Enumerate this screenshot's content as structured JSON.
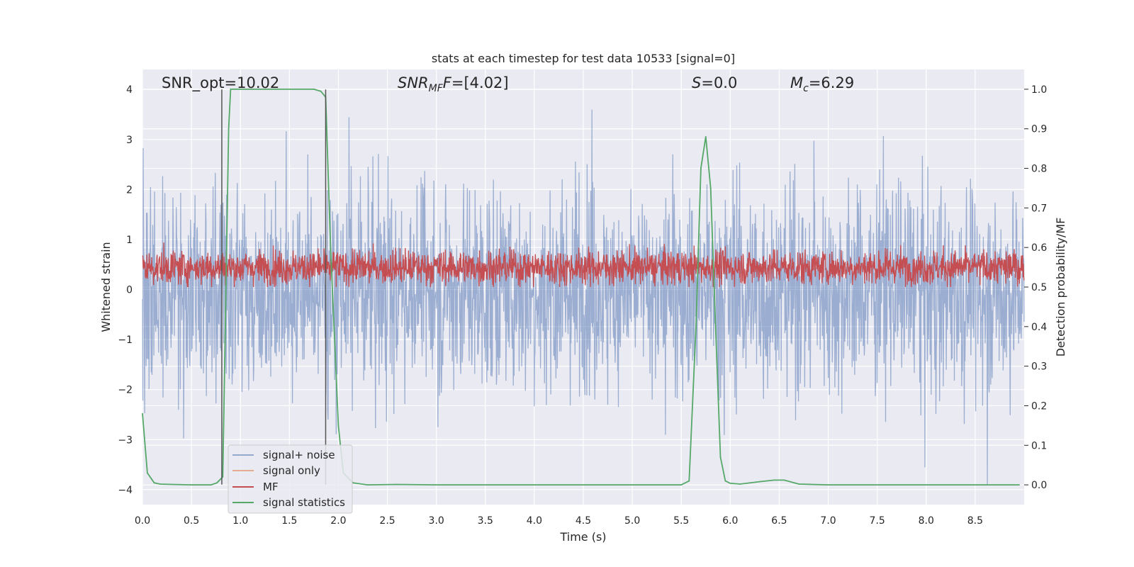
{
  "chart_data": {
    "type": "line",
    "title": "stats at each timestep for test data 10533 [signal=0]",
    "xlabel": "Time (s)",
    "ylabel": "Whitened strain",
    "ylabel_right": "Detection probability/MF",
    "xlim": [
      0,
      9
    ],
    "ylim": [
      -4.3,
      4.4
    ],
    "ylim_right": [
      -0.05,
      1.05
    ],
    "x_ticks": [
      "0.0",
      "0.5",
      "1.0",
      "1.5",
      "2.0",
      "2.5",
      "3.0",
      "3.5",
      "4.0",
      "4.5",
      "5.0",
      "5.5",
      "6.0",
      "6.5",
      "7.0",
      "7.5",
      "8.0",
      "8.5"
    ],
    "x_tick_values": [
      0,
      0.5,
      1,
      1.5,
      2,
      2.5,
      3,
      3.5,
      4,
      4.5,
      5,
      5.5,
      6,
      6.5,
      7,
      7.5,
      8,
      8.5
    ],
    "y_ticks": [
      "−4",
      "−3",
      "−2",
      "−1",
      "0",
      "1",
      "2",
      "3",
      "4"
    ],
    "y_tick_values": [
      -4,
      -3,
      -2,
      -1,
      0,
      1,
      2,
      3,
      4
    ],
    "y_ticks_right": [
      "0.0",
      "0.1",
      "0.2",
      "0.3",
      "0.4",
      "0.5",
      "0.6",
      "0.7",
      "0.8",
      "0.9",
      "1.0"
    ],
    "y_tick_values_right": [
      0,
      0.1,
      0.2,
      0.3,
      0.4,
      0.5,
      0.6,
      0.7,
      0.8,
      0.9,
      1.0
    ],
    "grid": true,
    "legend_position": "lower-left",
    "annotations": {
      "snr_opt": "SNR_opt=10.02",
      "snr_mf_main": "SNR",
      "snr_mf_sub": "MF",
      "snr_mf_value": "=[4.02]",
      "s_main": "S",
      "s_value": "=0.0",
      "mc_main": "M",
      "mc_sub": "c",
      "mc_value": "=6.29"
    },
    "vertical_lines_x": [
      0.81,
      1.87
    ],
    "series": [
      {
        "name": "signal+ noise",
        "axis": "left",
        "color": "#4c72b0",
        "opacity": 0.5,
        "description_stats": {
          "std": 1.0,
          "min": -3.9,
          "max": 4.0
        }
      },
      {
        "name": "signal only",
        "axis": "left",
        "color": "#dd8452",
        "opacity": 0.5
      },
      {
        "name": "MF",
        "axis": "right",
        "color": "#c44e52",
        "description_stats": {
          "min": 0.5,
          "max": 0.64
        }
      },
      {
        "name": "signal statistics",
        "axis": "right",
        "color": "#55a868",
        "x": [
          0.0,
          0.05,
          0.12,
          0.18,
          0.3,
          0.5,
          0.7,
          0.76,
          0.82,
          0.88,
          0.9,
          1.0,
          1.2,
          1.5,
          1.75,
          1.82,
          1.87,
          1.92,
          2.0,
          2.05,
          2.15,
          2.3,
          2.6,
          3.0,
          4.0,
          5.0,
          5.5,
          5.58,
          5.65,
          5.7,
          5.75,
          5.8,
          5.85,
          5.9,
          5.95,
          6.0,
          6.1,
          6.3,
          6.45,
          6.55,
          6.7,
          7.0,
          8.0,
          8.95
        ],
        "y": [
          0.18,
          0.03,
          0.005,
          0.002,
          0.001,
          0.0,
          0.0,
          0.005,
          0.02,
          0.9,
          1.0,
          1.0,
          1.0,
          1.0,
          1.0,
          0.995,
          0.98,
          0.6,
          0.15,
          0.03,
          0.005,
          0.0,
          0.001,
          0.0,
          0.0,
          0.0,
          0.0,
          0.01,
          0.4,
          0.8,
          0.88,
          0.75,
          0.4,
          0.07,
          0.01,
          0.004,
          0.002,
          0.008,
          0.012,
          0.012,
          0.002,
          0.0,
          0.0,
          0.0
        ]
      }
    ]
  }
}
